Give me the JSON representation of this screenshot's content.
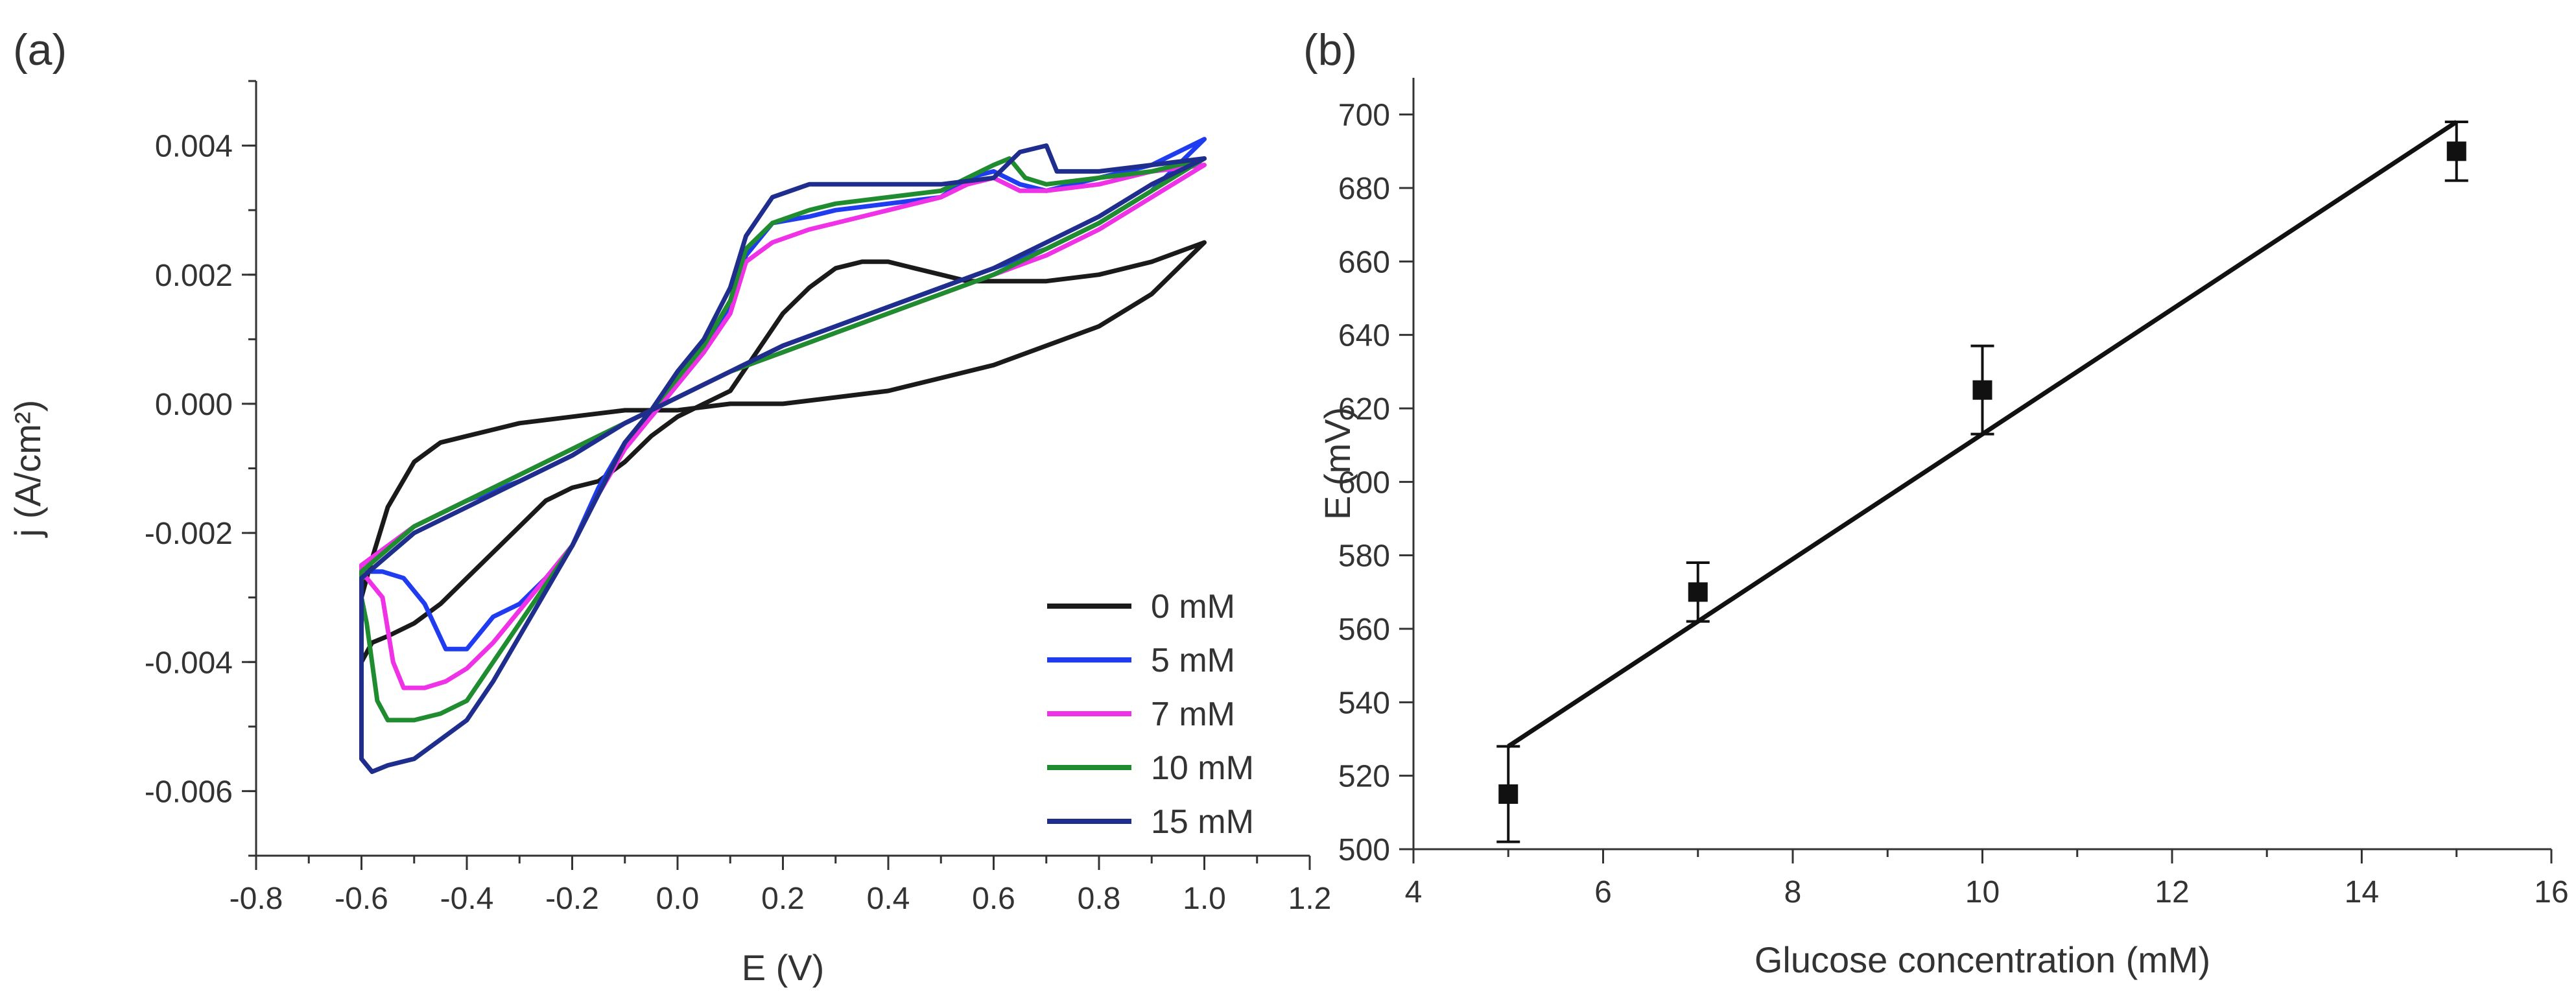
{
  "panels": {
    "a": {
      "label": "(a)"
    },
    "b": {
      "label": "(b)"
    }
  },
  "colors": {
    "axis": "#333333",
    "s0": "#1a1a1a",
    "s5": "#1f3cf0",
    "s7": "#f032e6",
    "s10": "#1f8c2f",
    "s15": "#1f2d8c",
    "fit": "#111111"
  },
  "chart_data": [
    {
      "type": "line",
      "panel": "a",
      "title": "",
      "xlabel": "E (V)",
      "ylabel": "j (A/cm²)",
      "xlim": [
        -0.8,
        1.2
      ],
      "ylim": [
        -0.007,
        0.005
      ],
      "xticks": [
        -0.8,
        -0.6,
        -0.4,
        -0.2,
        0.0,
        0.2,
        0.4,
        0.6,
        0.8,
        1.0,
        1.2
      ],
      "xtick_labels": [
        "-0.8",
        "-0.6",
        "-0.4",
        "-0.2",
        "0.0",
        "0.2",
        "0.4",
        "0.6",
        "0.8",
        "1.0",
        "1.2"
      ],
      "yticks": [
        0.004,
        0.002,
        0.0,
        -0.002,
        -0.004,
        -0.006
      ],
      "ytick_labels": [
        "0.004",
        "0.002",
        "0.000",
        "-0.002",
        "-0.004",
        "-0.006"
      ],
      "legend_position": "bottom-right",
      "series": [
        {
          "name": "0 mM",
          "color_key": "s0",
          "points": [
            [
              -0.6,
              -0.004
            ],
            [
              -0.58,
              -0.0037
            ],
            [
              -0.55,
              -0.0036
            ],
            [
              -0.5,
              -0.0034
            ],
            [
              -0.45,
              -0.0031
            ],
            [
              -0.4,
              -0.0027
            ],
            [
              -0.35,
              -0.0023
            ],
            [
              -0.3,
              -0.0019
            ],
            [
              -0.25,
              -0.0015
            ],
            [
              -0.2,
              -0.0013
            ],
            [
              -0.15,
              -0.0012
            ],
            [
              -0.1,
              -0.0009
            ],
            [
              -0.05,
              -0.0005
            ],
            [
              0.0,
              -0.0002
            ],
            [
              0.05,
              0.0
            ],
            [
              0.1,
              0.0002
            ],
            [
              0.15,
              0.0008
            ],
            [
              0.2,
              0.0014
            ],
            [
              0.25,
              0.0018
            ],
            [
              0.3,
              0.0021
            ],
            [
              0.35,
              0.0022
            ],
            [
              0.4,
              0.0022
            ],
            [
              0.45,
              0.0021
            ],
            [
              0.5,
              0.002
            ],
            [
              0.55,
              0.0019
            ],
            [
              0.6,
              0.0019
            ],
            [
              0.7,
              0.0019
            ],
            [
              0.8,
              0.002
            ],
            [
              0.9,
              0.0022
            ],
            [
              1.0,
              0.0025
            ],
            [
              0.9,
              0.0017
            ],
            [
              0.8,
              0.0012
            ],
            [
              0.7,
              0.0009
            ],
            [
              0.6,
              0.0006
            ],
            [
              0.5,
              0.0004
            ],
            [
              0.4,
              0.0002
            ],
            [
              0.3,
              0.0001
            ],
            [
              0.2,
              0.0
            ],
            [
              0.1,
              0.0
            ],
            [
              0.0,
              -0.0001
            ],
            [
              -0.1,
              -0.0001
            ],
            [
              -0.2,
              -0.0002
            ],
            [
              -0.3,
              -0.0003
            ],
            [
              -0.4,
              -0.0005
            ],
            [
              -0.45,
              -0.0006
            ],
            [
              -0.5,
              -0.0009
            ],
            [
              -0.55,
              -0.0016
            ],
            [
              -0.58,
              -0.0024
            ],
            [
              -0.6,
              -0.003
            ]
          ]
        },
        {
          "name": "5 mM",
          "color_key": "s5",
          "points": [
            [
              -0.6,
              -0.0048
            ],
            [
              -0.6,
              -0.0026
            ],
            [
              -0.56,
              -0.0026
            ],
            [
              -0.52,
              -0.0027
            ],
            [
              -0.48,
              -0.0031
            ],
            [
              -0.44,
              -0.0038
            ],
            [
              -0.4,
              -0.0038
            ],
            [
              -0.35,
              -0.0033
            ],
            [
              -0.3,
              -0.0031
            ],
            [
              -0.25,
              -0.0027
            ],
            [
              -0.2,
              -0.0022
            ],
            [
              -0.15,
              -0.0013
            ],
            [
              -0.1,
              -0.0006
            ],
            [
              -0.05,
              -0.0002
            ],
            [
              0.0,
              0.0003
            ],
            [
              0.05,
              0.0008
            ],
            [
              0.1,
              0.0015
            ],
            [
              0.13,
              0.0023
            ],
            [
              0.18,
              0.0028
            ],
            [
              0.25,
              0.0029
            ],
            [
              0.3,
              0.003
            ],
            [
              0.4,
              0.0031
            ],
            [
              0.5,
              0.0032
            ],
            [
              0.55,
              0.0035
            ],
            [
              0.6,
              0.0036
            ],
            [
              0.65,
              0.0034
            ],
            [
              0.7,
              0.0033
            ],
            [
              0.8,
              0.0035
            ],
            [
              0.9,
              0.0037
            ],
            [
              1.0,
              0.0041
            ],
            [
              0.9,
              0.0033
            ],
            [
              0.8,
              0.0028
            ],
            [
              0.7,
              0.0024
            ],
            [
              0.6,
              0.0021
            ],
            [
              0.5,
              0.0018
            ],
            [
              0.4,
              0.0015
            ],
            [
              0.3,
              0.0012
            ],
            [
              0.2,
              0.0009
            ],
            [
              0.1,
              0.0005
            ],
            [
              0.0,
              0.0001
            ],
            [
              -0.1,
              -0.0003
            ],
            [
              -0.2,
              -0.0008
            ],
            [
              -0.3,
              -0.0012
            ],
            [
              -0.4,
              -0.0015
            ],
            [
              -0.5,
              -0.0019
            ],
            [
              -0.6,
              -0.0025
            ]
          ]
        },
        {
          "name": "7 mM",
          "color_key": "s7",
          "points": [
            [
              -0.6,
              -0.0026
            ],
            [
              -0.56,
              -0.003
            ],
            [
              -0.54,
              -0.004
            ],
            [
              -0.52,
              -0.0044
            ],
            [
              -0.48,
              -0.0044
            ],
            [
              -0.44,
              -0.0043
            ],
            [
              -0.4,
              -0.0041
            ],
            [
              -0.35,
              -0.0037
            ],
            [
              -0.3,
              -0.0032
            ],
            [
              -0.25,
              -0.0027
            ],
            [
              -0.2,
              -0.0022
            ],
            [
              -0.15,
              -0.0014
            ],
            [
              -0.1,
              -0.0007
            ],
            [
              -0.05,
              -0.0002
            ],
            [
              0.0,
              0.0003
            ],
            [
              0.05,
              0.0008
            ],
            [
              0.1,
              0.0014
            ],
            [
              0.13,
              0.0022
            ],
            [
              0.18,
              0.0025
            ],
            [
              0.25,
              0.0027
            ],
            [
              0.3,
              0.0028
            ],
            [
              0.4,
              0.003
            ],
            [
              0.5,
              0.0032
            ],
            [
              0.55,
              0.0034
            ],
            [
              0.6,
              0.0035
            ],
            [
              0.65,
              0.0033
            ],
            [
              0.7,
              0.0033
            ],
            [
              0.8,
              0.0034
            ],
            [
              0.9,
              0.0036
            ],
            [
              1.0,
              0.0037
            ],
            [
              0.9,
              0.0032
            ],
            [
              0.8,
              0.0027
            ],
            [
              0.7,
              0.0023
            ],
            [
              0.6,
              0.002
            ],
            [
              0.5,
              0.0017
            ],
            [
              0.4,
              0.0014
            ],
            [
              0.3,
              0.0011
            ],
            [
              0.2,
              0.0008
            ],
            [
              0.1,
              0.0005
            ],
            [
              0.0,
              0.0001
            ],
            [
              -0.1,
              -0.0003
            ],
            [
              -0.2,
              -0.0007
            ],
            [
              -0.3,
              -0.0011
            ],
            [
              -0.4,
              -0.0015
            ],
            [
              -0.5,
              -0.0019
            ],
            [
              -0.6,
              -0.0025
            ]
          ]
        },
        {
          "name": "10 mM",
          "color_key": "s10",
          "points": [
            [
              -0.6,
              -0.003
            ],
            [
              -0.59,
              -0.0034
            ],
            [
              -0.57,
              -0.0046
            ],
            [
              -0.55,
              -0.0049
            ],
            [
              -0.5,
              -0.0049
            ],
            [
              -0.45,
              -0.0048
            ],
            [
              -0.4,
              -0.0046
            ],
            [
              -0.35,
              -0.004
            ],
            [
              -0.3,
              -0.0034
            ],
            [
              -0.25,
              -0.0028
            ],
            [
              -0.2,
              -0.0022
            ],
            [
              -0.15,
              -0.0014
            ],
            [
              -0.1,
              -0.0006
            ],
            [
              -0.05,
              -0.0001
            ],
            [
              0.0,
              0.0004
            ],
            [
              0.05,
              0.0009
            ],
            [
              0.1,
              0.0016
            ],
            [
              0.13,
              0.0024
            ],
            [
              0.18,
              0.0028
            ],
            [
              0.25,
              0.003
            ],
            [
              0.3,
              0.0031
            ],
            [
              0.4,
              0.0032
            ],
            [
              0.5,
              0.0033
            ],
            [
              0.55,
              0.0035
            ],
            [
              0.6,
              0.0037
            ],
            [
              0.63,
              0.0038
            ],
            [
              0.66,
              0.0035
            ],
            [
              0.7,
              0.0034
            ],
            [
              0.8,
              0.0035
            ],
            [
              0.9,
              0.0036
            ],
            [
              1.0,
              0.0038
            ],
            [
              0.9,
              0.0033
            ],
            [
              0.8,
              0.0028
            ],
            [
              0.7,
              0.0024
            ],
            [
              0.6,
              0.002
            ],
            [
              0.5,
              0.0017
            ],
            [
              0.4,
              0.0014
            ],
            [
              0.3,
              0.0011
            ],
            [
              0.2,
              0.0008
            ],
            [
              0.1,
              0.0005
            ],
            [
              0.0,
              0.0001
            ],
            [
              -0.1,
              -0.0003
            ],
            [
              -0.2,
              -0.0007
            ],
            [
              -0.3,
              -0.0011
            ],
            [
              -0.4,
              -0.0015
            ],
            [
              -0.5,
              -0.0019
            ],
            [
              -0.6,
              -0.0026
            ]
          ]
        },
        {
          "name": "15 mM",
          "color_key": "s15",
          "points": [
            [
              -0.6,
              -0.0055
            ],
            [
              -0.58,
              -0.0057
            ],
            [
              -0.55,
              -0.0056
            ],
            [
              -0.5,
              -0.0055
            ],
            [
              -0.45,
              -0.0052
            ],
            [
              -0.4,
              -0.0049
            ],
            [
              -0.35,
              -0.0043
            ],
            [
              -0.3,
              -0.0036
            ],
            [
              -0.25,
              -0.0029
            ],
            [
              -0.2,
              -0.0022
            ],
            [
              -0.15,
              -0.0014
            ],
            [
              -0.1,
              -0.0006
            ],
            [
              -0.05,
              -0.0001
            ],
            [
              0.0,
              0.0005
            ],
            [
              0.05,
              0.001
            ],
            [
              0.1,
              0.0018
            ],
            [
              0.13,
              0.0026
            ],
            [
              0.18,
              0.0032
            ],
            [
              0.25,
              0.0034
            ],
            [
              0.3,
              0.0034
            ],
            [
              0.4,
              0.0034
            ],
            [
              0.5,
              0.0034
            ],
            [
              0.6,
              0.0035
            ],
            [
              0.65,
              0.0039
            ],
            [
              0.7,
              0.004
            ],
            [
              0.72,
              0.0036
            ],
            [
              0.8,
              0.0036
            ],
            [
              0.9,
              0.0037
            ],
            [
              1.0,
              0.0038
            ],
            [
              0.9,
              0.0034
            ],
            [
              0.8,
              0.0029
            ],
            [
              0.7,
              0.0025
            ],
            [
              0.6,
              0.0021
            ],
            [
              0.5,
              0.0018
            ],
            [
              0.4,
              0.0015
            ],
            [
              0.3,
              0.0012
            ],
            [
              0.2,
              0.0009
            ],
            [
              0.1,
              0.0005
            ],
            [
              0.0,
              0.0001
            ],
            [
              -0.1,
              -0.0003
            ],
            [
              -0.2,
              -0.0008
            ],
            [
              -0.3,
              -0.0012
            ],
            [
              -0.4,
              -0.0016
            ],
            [
              -0.5,
              -0.002
            ],
            [
              -0.6,
              -0.0027
            ]
          ]
        }
      ]
    },
    {
      "type": "scatter",
      "panel": "b",
      "title": "",
      "xlabel": "Glucose concentration (mM)",
      "ylabel": "E (mV)",
      "xlim": [
        4,
        16
      ],
      "ylim": [
        500,
        710
      ],
      "xticks": [
        4,
        6,
        8,
        10,
        12,
        14,
        16
      ],
      "xtick_labels": [
        "4",
        "6",
        "8",
        "10",
        "12",
        "14",
        "16"
      ],
      "yticks": [
        500,
        520,
        540,
        560,
        580,
        600,
        620,
        640,
        660,
        680,
        700
      ],
      "ytick_labels": [
        "500",
        "520",
        "540",
        "560",
        "580",
        "600",
        "620",
        "640",
        "660",
        "680",
        "700"
      ],
      "points": [
        {
          "x": 5,
          "y": 515,
          "err": 13
        },
        {
          "x": 7,
          "y": 570,
          "err": 8
        },
        {
          "x": 10,
          "y": 625,
          "err": 12
        },
        {
          "x": 15,
          "y": 690,
          "err": 8
        }
      ],
      "fit_line": {
        "x": [
          5,
          15
        ],
        "y": [
          528,
          698
        ]
      }
    }
  ]
}
